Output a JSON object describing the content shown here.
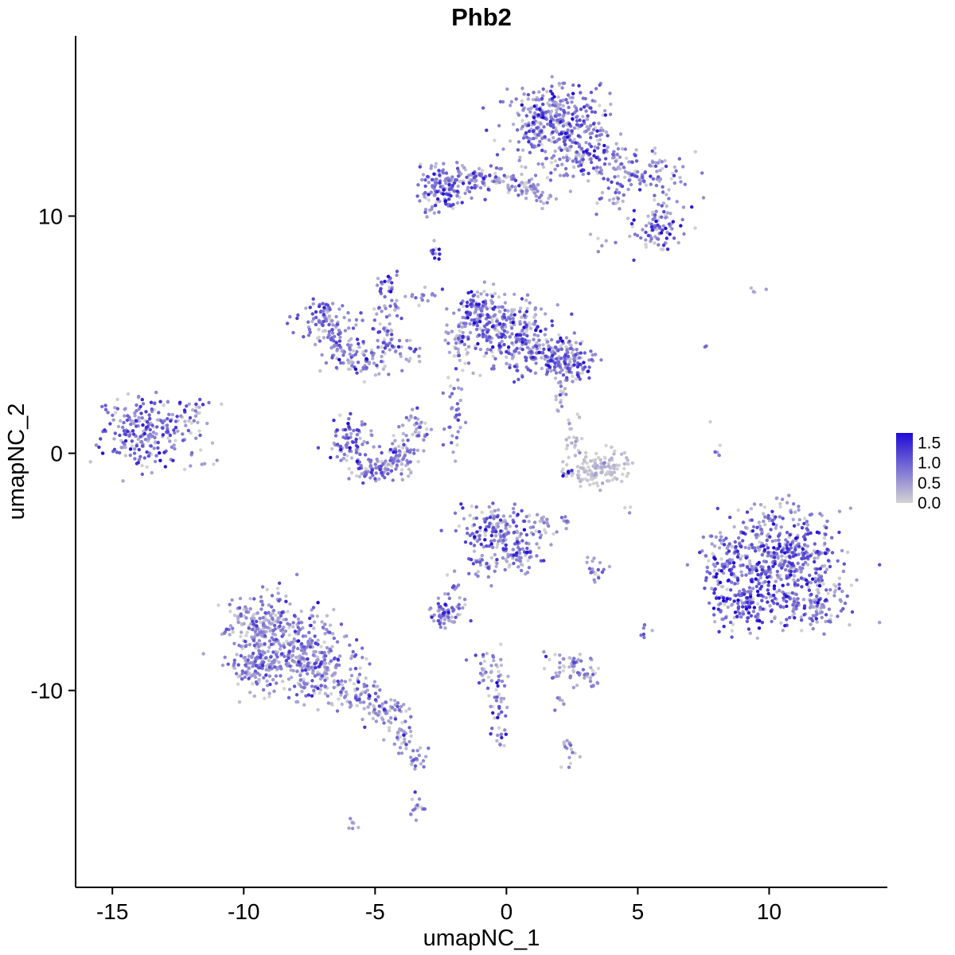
{
  "title": "Phb2",
  "chart_data": {
    "type": "scatter",
    "title": "Phb2",
    "xlabel": "umapNC_1",
    "ylabel": "umapNC_2",
    "xlim": [
      -16.4,
      14.5
    ],
    "ylim": [
      -18.3,
      17.6
    ],
    "x_ticks": [
      -15,
      -10,
      -5,
      0,
      5,
      10
    ],
    "y_ticks": [
      -10,
      0,
      10
    ],
    "grid": false,
    "point_radius": 2.2,
    "seed": 42,
    "legend": {
      "position": "right",
      "ticks": [
        "1.5",
        "1.0",
        "0.5",
        "0.0"
      ],
      "min_value": 0.0,
      "max_value": 1.75,
      "low_color": "#D3D3D3",
      "high_color": "#1F0BD6"
    },
    "description": "UMAP feature plot of Phb2 expression; points are cells colored from lightgrey (0) to blue (1.75). Clusters below give center (cx,cy), spread (sx,sy), cell count n, and expression level as fraction of max (expr_mean, expr_sd).",
    "clusters": [
      {
        "cx": 1.9,
        "cy": 14.1,
        "sx": 0.85,
        "sy": 0.75,
        "n": 330,
        "expr_mean": 0.42,
        "expr_sd": 0.3
      },
      {
        "cx": 2.9,
        "cy": 12.5,
        "sx": 0.9,
        "sy": 0.5,
        "n": 130,
        "expr_mean": 0.35,
        "expr_sd": 0.27
      },
      {
        "cx": 5.2,
        "cy": 11.8,
        "sx": 0.85,
        "sy": 0.5,
        "n": 110,
        "expr_mean": 0.3,
        "expr_sd": 0.27
      },
      {
        "cx": 5.7,
        "cy": 9.5,
        "sx": 0.5,
        "sy": 0.5,
        "n": 90,
        "expr_mean": 0.42,
        "expr_sd": 0.3
      },
      {
        "cx": 4.0,
        "cy": 10.7,
        "sx": 0.4,
        "sy": 0.4,
        "n": 18,
        "expr_mean": 0.25,
        "expr_sd": 0.2
      },
      {
        "cx": 3.4,
        "cy": 9.0,
        "sx": 0.2,
        "sy": 0.2,
        "n": 5,
        "expr_mean": 0.3,
        "expr_sd": 0.2
      },
      {
        "cx": -2.5,
        "cy": 11.2,
        "sx": 0.5,
        "sy": 0.45,
        "n": 130,
        "expr_mean": 0.45,
        "expr_sd": 0.3
      },
      {
        "cx": -1.2,
        "cy": 11.5,
        "sx": 0.5,
        "sy": 0.35,
        "n": 70,
        "expr_mean": 0.3,
        "expr_sd": 0.25
      },
      {
        "cx": 0.2,
        "cy": 11.4,
        "sx": 0.6,
        "sy": 0.35,
        "n": 60,
        "expr_mean": 0.3,
        "expr_sd": 0.25
      },
      {
        "cx": 1.3,
        "cy": 11.0,
        "sx": 0.35,
        "sy": 0.3,
        "n": 30,
        "expr_mean": 0.25,
        "expr_sd": 0.22
      },
      {
        "cx": -2.8,
        "cy": 8.5,
        "sx": 0.12,
        "sy": 0.22,
        "n": 12,
        "expr_mean": 0.5,
        "expr_sd": 0.3
      },
      {
        "cx": -4.5,
        "cy": 7.2,
        "sx": 0.2,
        "sy": 0.25,
        "n": 22,
        "expr_mean": 0.45,
        "expr_sd": 0.3
      },
      {
        "cx": -0.9,
        "cy": 5.9,
        "sx": 0.55,
        "sy": 0.5,
        "n": 130,
        "expr_mean": 0.45,
        "expr_sd": 0.28
      },
      {
        "cx": 0.3,
        "cy": 4.9,
        "sx": 0.8,
        "sy": 0.7,
        "n": 230,
        "expr_mean": 0.4,
        "expr_sd": 0.28
      },
      {
        "cx": 1.9,
        "cy": 4.1,
        "sx": 0.6,
        "sy": 0.5,
        "n": 150,
        "expr_mean": 0.4,
        "expr_sd": 0.28
      },
      {
        "cx": 2.6,
        "cy": 3.6,
        "sx": 0.3,
        "sy": 0.35,
        "n": 40,
        "expr_mean": 0.35,
        "expr_sd": 0.25
      },
      {
        "cx": -1.8,
        "cy": 4.4,
        "sx": 0.3,
        "sy": 0.5,
        "n": 40,
        "expr_mean": 0.3,
        "expr_sd": 0.25
      },
      {
        "cx": -3.2,
        "cy": 6.7,
        "sx": 0.5,
        "sy": 0.3,
        "n": 18,
        "expr_mean": 0.3,
        "expr_sd": 0.22
      },
      {
        "cx": -7.0,
        "cy": 5.7,
        "sx": 0.55,
        "sy": 0.4,
        "n": 85,
        "expr_mean": 0.4,
        "expr_sd": 0.27
      },
      {
        "cx": -6.4,
        "cy": 4.7,
        "sx": 0.4,
        "sy": 0.45,
        "n": 55,
        "expr_mean": 0.35,
        "expr_sd": 0.25
      },
      {
        "cx": -5.5,
        "cy": 3.9,
        "sx": 0.45,
        "sy": 0.35,
        "n": 55,
        "expr_mean": 0.35,
        "expr_sd": 0.25
      },
      {
        "cx": -4.6,
        "cy": 4.9,
        "sx": 0.25,
        "sy": 0.55,
        "n": 40,
        "expr_mean": 0.3,
        "expr_sd": 0.25
      },
      {
        "cx": -4.4,
        "cy": 6.0,
        "sx": 0.3,
        "sy": 0.25,
        "n": 20,
        "expr_mean": 0.25,
        "expr_sd": 0.22
      },
      {
        "cx": -3.8,
        "cy": 4.4,
        "sx": 0.25,
        "sy": 0.4,
        "n": 20,
        "expr_mean": 0.3,
        "expr_sd": 0.22
      },
      {
        "cx": -13.7,
        "cy": 0.9,
        "sx": 0.8,
        "sy": 0.75,
        "n": 220,
        "expr_mean": 0.42,
        "expr_sd": 0.28
      },
      {
        "cx": -12.1,
        "cy": 1.5,
        "sx": 0.6,
        "sy": 0.5,
        "n": 30,
        "expr_mean": 0.3,
        "expr_sd": 0.25
      },
      {
        "cx": -11.6,
        "cy": -0.4,
        "sx": 0.3,
        "sy": 0.3,
        "n": 8,
        "expr_mean": 0.15,
        "expr_sd": 0.15
      },
      {
        "cx": -6.0,
        "cy": 0.5,
        "sx": 0.4,
        "sy": 0.55,
        "n": 80,
        "expr_mean": 0.4,
        "expr_sd": 0.27
      },
      {
        "cx": -5.0,
        "cy": -0.6,
        "sx": 0.5,
        "sy": 0.3,
        "n": 80,
        "expr_mean": 0.35,
        "expr_sd": 0.25
      },
      {
        "cx": -4.0,
        "cy": -0.1,
        "sx": 0.3,
        "sy": 0.45,
        "n": 60,
        "expr_mean": 0.35,
        "expr_sd": 0.25
      },
      {
        "cx": -3.4,
        "cy": 1.1,
        "sx": 0.25,
        "sy": 0.35,
        "n": 35,
        "expr_mean": 0.3,
        "expr_sd": 0.25
      },
      {
        "cx": -1.9,
        "cy": 1.6,
        "sx": 0.2,
        "sy": 0.95,
        "n": 35,
        "expr_mean": 0.3,
        "expr_sd": 0.25
      },
      {
        "cx": 2.05,
        "cy": 2.4,
        "sx": 0.15,
        "sy": 0.6,
        "n": 20,
        "expr_mean": 0.25,
        "expr_sd": 0.22
      },
      {
        "cx": 2.6,
        "cy": 0.4,
        "sx": 0.25,
        "sy": 0.5,
        "n": 25,
        "expr_mean": 0.08,
        "expr_sd": 0.1
      },
      {
        "cx": 3.2,
        "cy": -0.75,
        "sx": 0.5,
        "sy": 0.28,
        "n": 90,
        "expr_mean": 0.06,
        "expr_sd": 0.07
      },
      {
        "cx": 4.1,
        "cy": -0.5,
        "sx": 0.35,
        "sy": 0.35,
        "n": 45,
        "expr_mean": 0.08,
        "expr_sd": 0.1
      },
      {
        "cx": 2.4,
        "cy": -0.8,
        "sx": 0.12,
        "sy": 0.12,
        "n": 6,
        "expr_mean": 0.6,
        "expr_sd": 0.25
      },
      {
        "cx": -0.5,
        "cy": -3.2,
        "sx": 0.65,
        "sy": 0.55,
        "n": 150,
        "expr_mean": 0.42,
        "expr_sd": 0.3
      },
      {
        "cx": 0.4,
        "cy": -4.3,
        "sx": 0.45,
        "sy": 0.4,
        "n": 70,
        "expr_mean": 0.35,
        "expr_sd": 0.27
      },
      {
        "cx": -0.9,
        "cy": -4.9,
        "sx": 0.25,
        "sy": 0.35,
        "n": 25,
        "expr_mean": 0.3,
        "expr_sd": 0.25
      },
      {
        "cx": 1.4,
        "cy": -3.2,
        "sx": 0.35,
        "sy": 0.35,
        "n": 25,
        "expr_mean": 0.2,
        "expr_sd": 0.2
      },
      {
        "cx": 2.2,
        "cy": -2.85,
        "sx": 0.15,
        "sy": 0.15,
        "n": 8,
        "expr_mean": 0.25,
        "expr_sd": 0.2
      },
      {
        "cx": -2.3,
        "cy": -6.7,
        "sx": 0.38,
        "sy": 0.3,
        "n": 65,
        "expr_mean": 0.35,
        "expr_sd": 0.27
      },
      {
        "cx": -2.0,
        "cy": -5.7,
        "sx": 0.15,
        "sy": 0.3,
        "n": 10,
        "expr_mean": 0.3,
        "expr_sd": 0.25
      },
      {
        "cx": 3.4,
        "cy": -4.9,
        "sx": 0.3,
        "sy": 0.25,
        "n": 20,
        "expr_mean": 0.25,
        "expr_sd": 0.25
      },
      {
        "cx": -9.3,
        "cy": -7.0,
        "sx": 0.7,
        "sy": 0.7,
        "n": 150,
        "expr_mean": 0.32,
        "expr_sd": 0.25
      },
      {
        "cx": -8.3,
        "cy": -8.3,
        "sx": 1.0,
        "sy": 0.85,
        "n": 320,
        "expr_mean": 0.32,
        "expr_sd": 0.25
      },
      {
        "cx": -6.9,
        "cy": -9.3,
        "sx": 0.7,
        "sy": 0.6,
        "n": 130,
        "expr_mean": 0.3,
        "expr_sd": 0.25
      },
      {
        "cx": -9.5,
        "cy": -9.1,
        "sx": 0.5,
        "sy": 0.5,
        "n": 80,
        "expr_mean": 0.3,
        "expr_sd": 0.25
      },
      {
        "cx": -5.6,
        "cy": -10.2,
        "sx": 0.5,
        "sy": 0.4,
        "n": 60,
        "expr_mean": 0.3,
        "expr_sd": 0.25
      },
      {
        "cx": -4.6,
        "cy": -10.9,
        "sx": 0.4,
        "sy": 0.35,
        "n": 50,
        "expr_mean": 0.32,
        "expr_sd": 0.25
      },
      {
        "cx": -4.0,
        "cy": -11.9,
        "sx": 0.25,
        "sy": 0.4,
        "n": 30,
        "expr_mean": 0.3,
        "expr_sd": 0.25
      },
      {
        "cx": -3.5,
        "cy": -13.0,
        "sx": 0.2,
        "sy": 0.35,
        "n": 20,
        "expr_mean": 0.3,
        "expr_sd": 0.25
      },
      {
        "cx": -3.4,
        "cy": -14.9,
        "sx": 0.2,
        "sy": 0.3,
        "n": 15,
        "expr_mean": 0.28,
        "expr_sd": 0.25
      },
      {
        "cx": -5.9,
        "cy": -15.6,
        "sx": 0.18,
        "sy": 0.2,
        "n": 7,
        "expr_mean": 0.25,
        "expr_sd": 0.2
      },
      {
        "cx": -0.65,
        "cy": -9.1,
        "sx": 0.3,
        "sy": 0.45,
        "n": 35,
        "expr_mean": 0.3,
        "expr_sd": 0.27
      },
      {
        "cx": -0.3,
        "cy": -10.7,
        "sx": 0.18,
        "sy": 0.5,
        "n": 28,
        "expr_mean": 0.35,
        "expr_sd": 0.3
      },
      {
        "cx": -0.15,
        "cy": -12.1,
        "sx": 0.12,
        "sy": 0.25,
        "n": 10,
        "expr_mean": 0.3,
        "expr_sd": 0.25
      },
      {
        "cx": 2.3,
        "cy": -8.9,
        "sx": 0.4,
        "sy": 0.3,
        "n": 45,
        "expr_mean": 0.28,
        "expr_sd": 0.25
      },
      {
        "cx": 3.1,
        "cy": -9.4,
        "sx": 0.3,
        "sy": 0.25,
        "n": 20,
        "expr_mean": 0.25,
        "expr_sd": 0.22
      },
      {
        "cx": 2.4,
        "cy": -12.6,
        "sx": 0.2,
        "sy": 0.3,
        "n": 16,
        "expr_mean": 0.3,
        "expr_sd": 0.25
      },
      {
        "cx": 2.0,
        "cy": -10.4,
        "sx": 0.15,
        "sy": 0.2,
        "n": 6,
        "expr_mean": 0.25,
        "expr_sd": 0.2
      },
      {
        "cx": 10.6,
        "cy": -4.4,
        "sx": 1.15,
        "sy": 0.85,
        "n": 380,
        "expr_mean": 0.45,
        "expr_sd": 0.3
      },
      {
        "cx": 9.2,
        "cy": -6.2,
        "sx": 0.75,
        "sy": 0.6,
        "n": 180,
        "expr_mean": 0.5,
        "expr_sd": 0.32
      },
      {
        "cx": 11.7,
        "cy": -6.3,
        "sx": 0.75,
        "sy": 0.55,
        "n": 140,
        "expr_mean": 0.4,
        "expr_sd": 0.28
      },
      {
        "cx": 8.3,
        "cy": -4.3,
        "sx": 0.5,
        "sy": 0.6,
        "n": 70,
        "expr_mean": 0.45,
        "expr_sd": 0.3
      },
      {
        "cx": 10.4,
        "cy": -2.5,
        "sx": 0.9,
        "sy": 0.4,
        "n": 45,
        "expr_mean": 0.3,
        "expr_sd": 0.27
      },
      {
        "cx": 8.0,
        "cy": 0.3,
        "sx": 0.1,
        "sy": 0.6,
        "n": 5,
        "expr_mean": 0.3,
        "expr_sd": 0.25
      },
      {
        "cx": 9.7,
        "cy": 6.9,
        "sx": 0.35,
        "sy": 0.15,
        "n": 4,
        "expr_mean": 0.12,
        "expr_sd": 0.12
      },
      {
        "cx": 7.6,
        "cy": 4.4,
        "sx": 0.06,
        "sy": 0.06,
        "n": 2,
        "expr_mean": 0.5,
        "expr_sd": 0.2
      },
      {
        "cx": 5.2,
        "cy": -7.5,
        "sx": 0.12,
        "sy": 0.3,
        "n": 6,
        "expr_mean": 0.4,
        "expr_sd": 0.25
      },
      {
        "cx": 4.7,
        "cy": -2.4,
        "sx": 0.1,
        "sy": 0.1,
        "n": 3,
        "expr_mean": 0.2,
        "expr_sd": 0.15
      }
    ]
  }
}
